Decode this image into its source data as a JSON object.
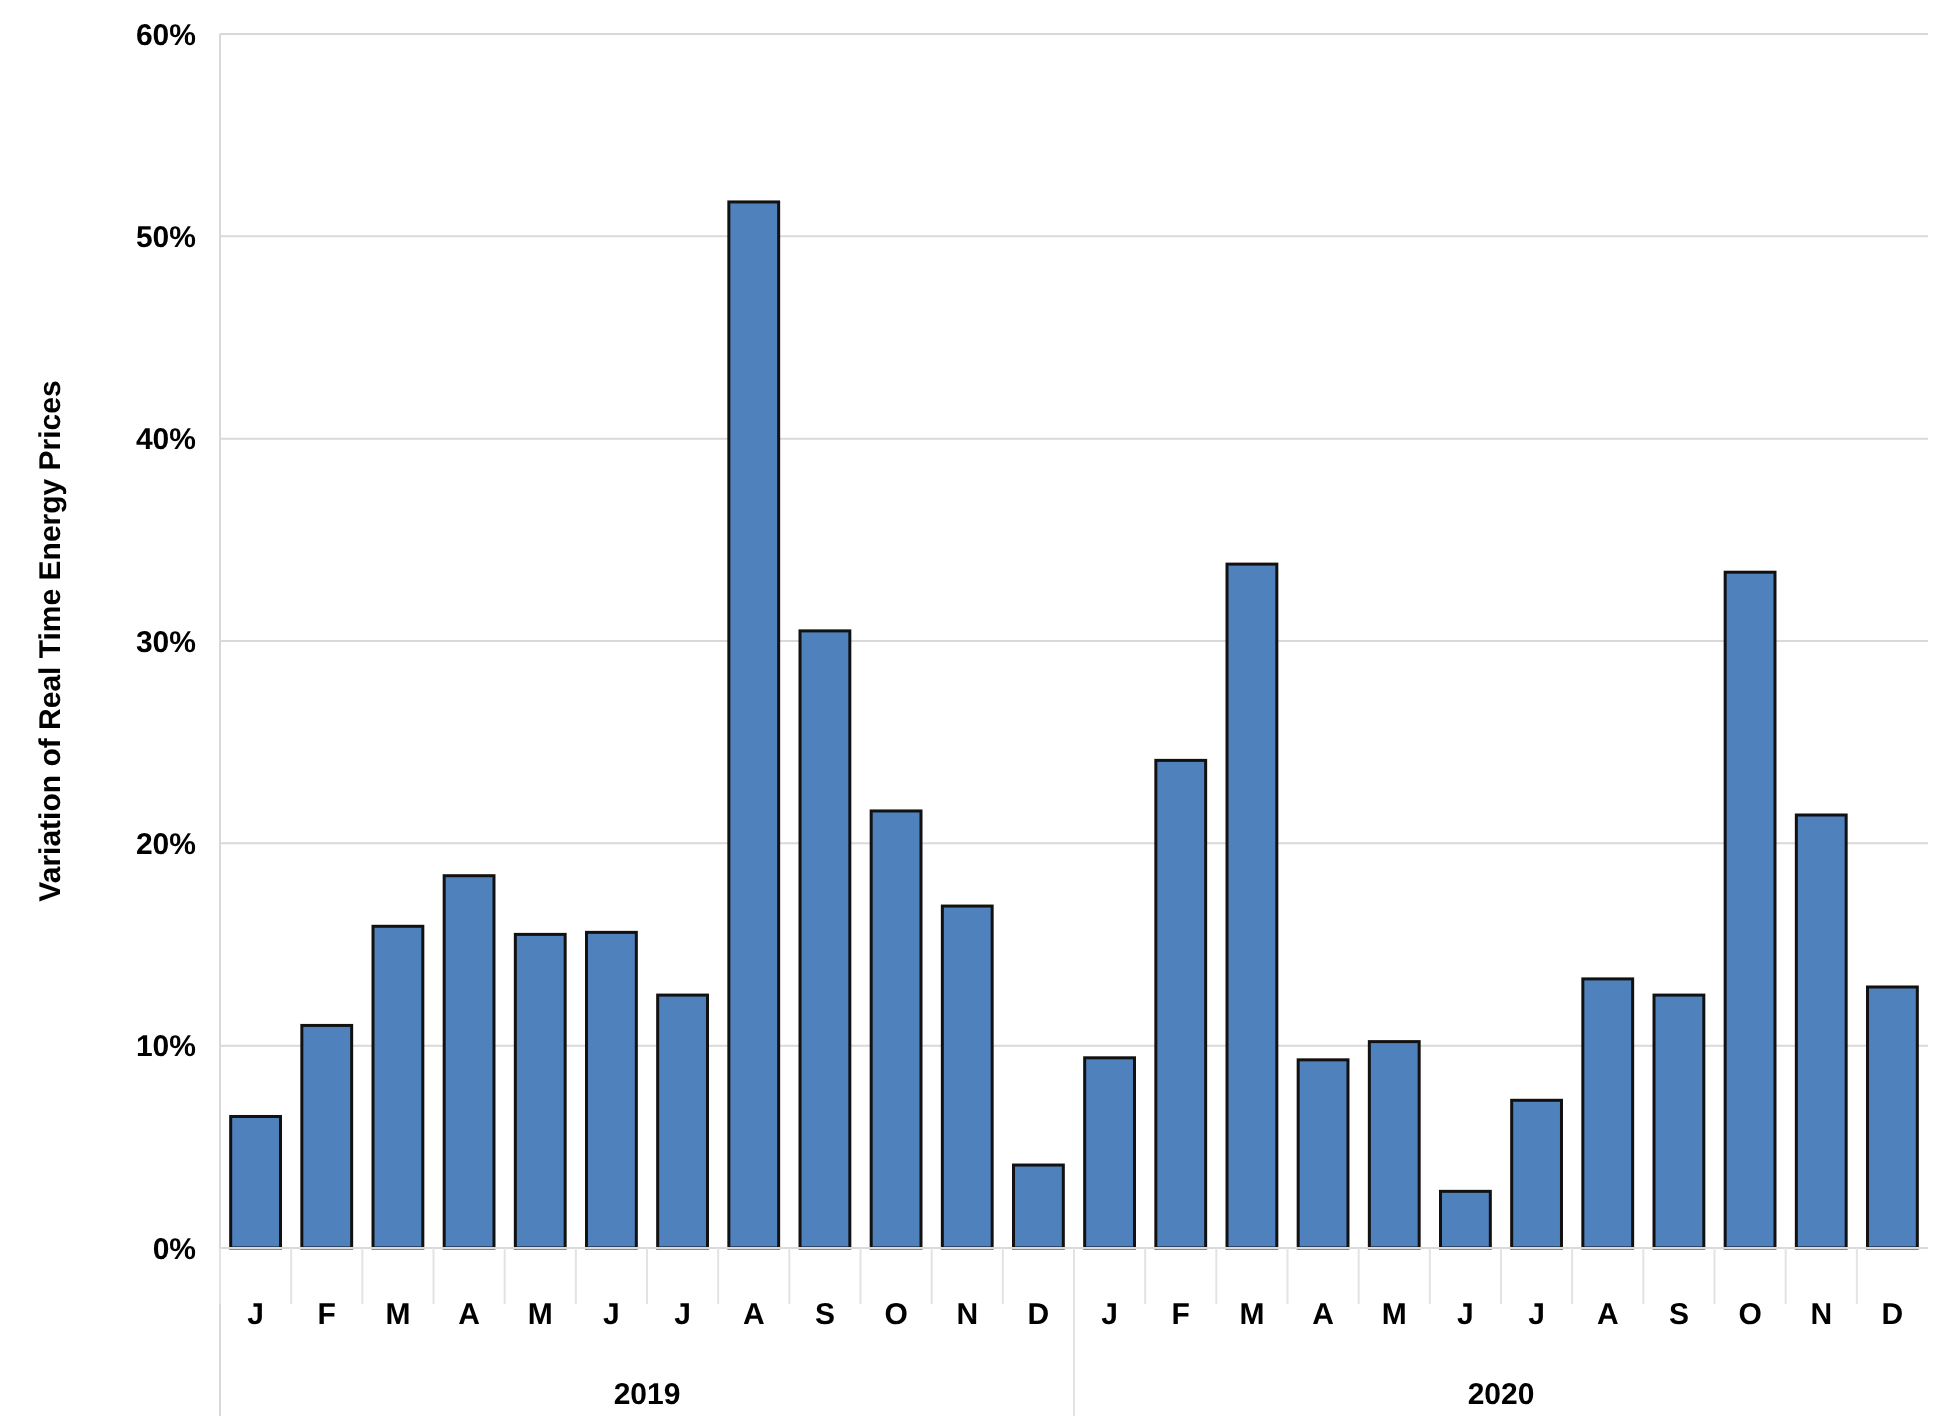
{
  "chart_data": {
    "type": "bar",
    "ylabel": "Variation of Real Time Energy Prices",
    "categories": [
      "J",
      "F",
      "M",
      "A",
      "M",
      "J",
      "J",
      "A",
      "S",
      "O",
      "N",
      "D",
      "J",
      "F",
      "M",
      "A",
      "M",
      "J",
      "J",
      "A",
      "S",
      "O",
      "N",
      "D"
    ],
    "values": [
      6.5,
      11.0,
      15.9,
      18.4,
      15.5,
      15.6,
      12.5,
      51.7,
      30.5,
      21.6,
      16.9,
      4.1,
      9.4,
      24.1,
      33.8,
      9.3,
      10.2,
      2.8,
      7.3,
      13.3,
      12.5,
      33.4,
      21.4,
      12.9
    ],
    "color": "#4f81bd",
    "ylim": [
      0,
      60
    ],
    "yticks": [
      {
        "value": 0,
        "label": "0%"
      },
      {
        "value": 10,
        "label": "10%"
      },
      {
        "value": 20,
        "label": "20%"
      },
      {
        "value": 30,
        "label": "30%"
      },
      {
        "value": 40,
        "label": "40%"
      },
      {
        "value": 50,
        "label": "50%"
      },
      {
        "value": 60,
        "label": "60%"
      }
    ],
    "grid": "y",
    "annotations": [
      "2019",
      "2020"
    ]
  }
}
